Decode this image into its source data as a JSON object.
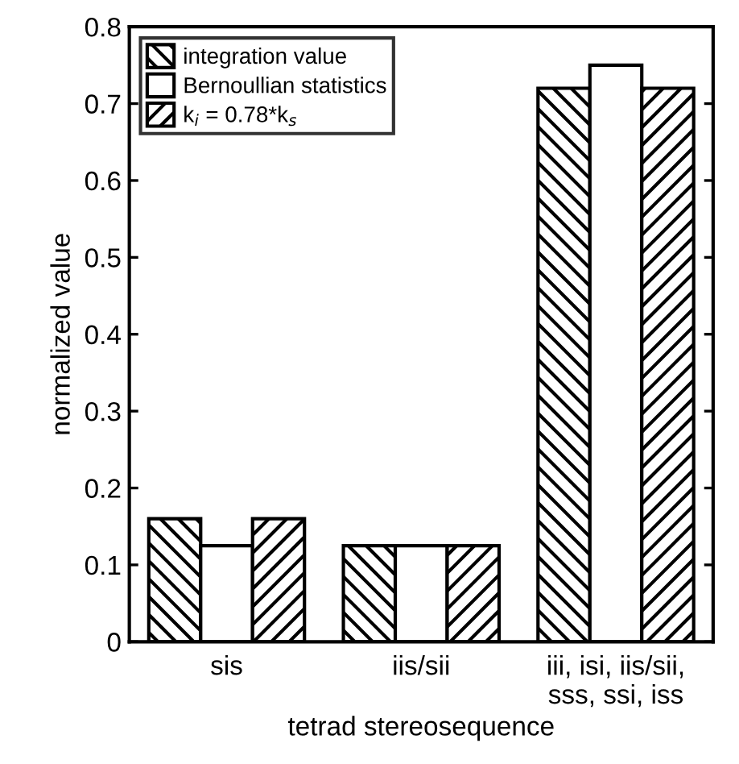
{
  "chart_data": {
    "type": "bar",
    "xlabel": "tetrad stereosequence",
    "ylabel": "normalized value",
    "categories": [
      "sis",
      "iis/sii",
      "iii, isi, iis/sii,\nsss, ssi, iss"
    ],
    "series": [
      {
        "name": "integration value",
        "color": "#000000",
        "values": [
          0.16,
          0.125,
          0.72
        ]
      },
      {
        "name": "Bernoullian statistics",
        "color": "#000000",
        "values": [
          0.125,
          0.125,
          0.75
        ]
      },
      {
        "name": "k$_{i}$ = 0.78*k$_{s}$",
        "color": "#000000",
        "values": [
          0.16,
          0.125,
          0.72
        ]
      }
    ],
    "ylim": [
      0,
      0.8
    ],
    "yticks": [
      0,
      0.1,
      0.2,
      0.3,
      0.4,
      0.5,
      0.6,
      0.7,
      0.8
    ],
    "grid": false,
    "legend": "top left"
  }
}
